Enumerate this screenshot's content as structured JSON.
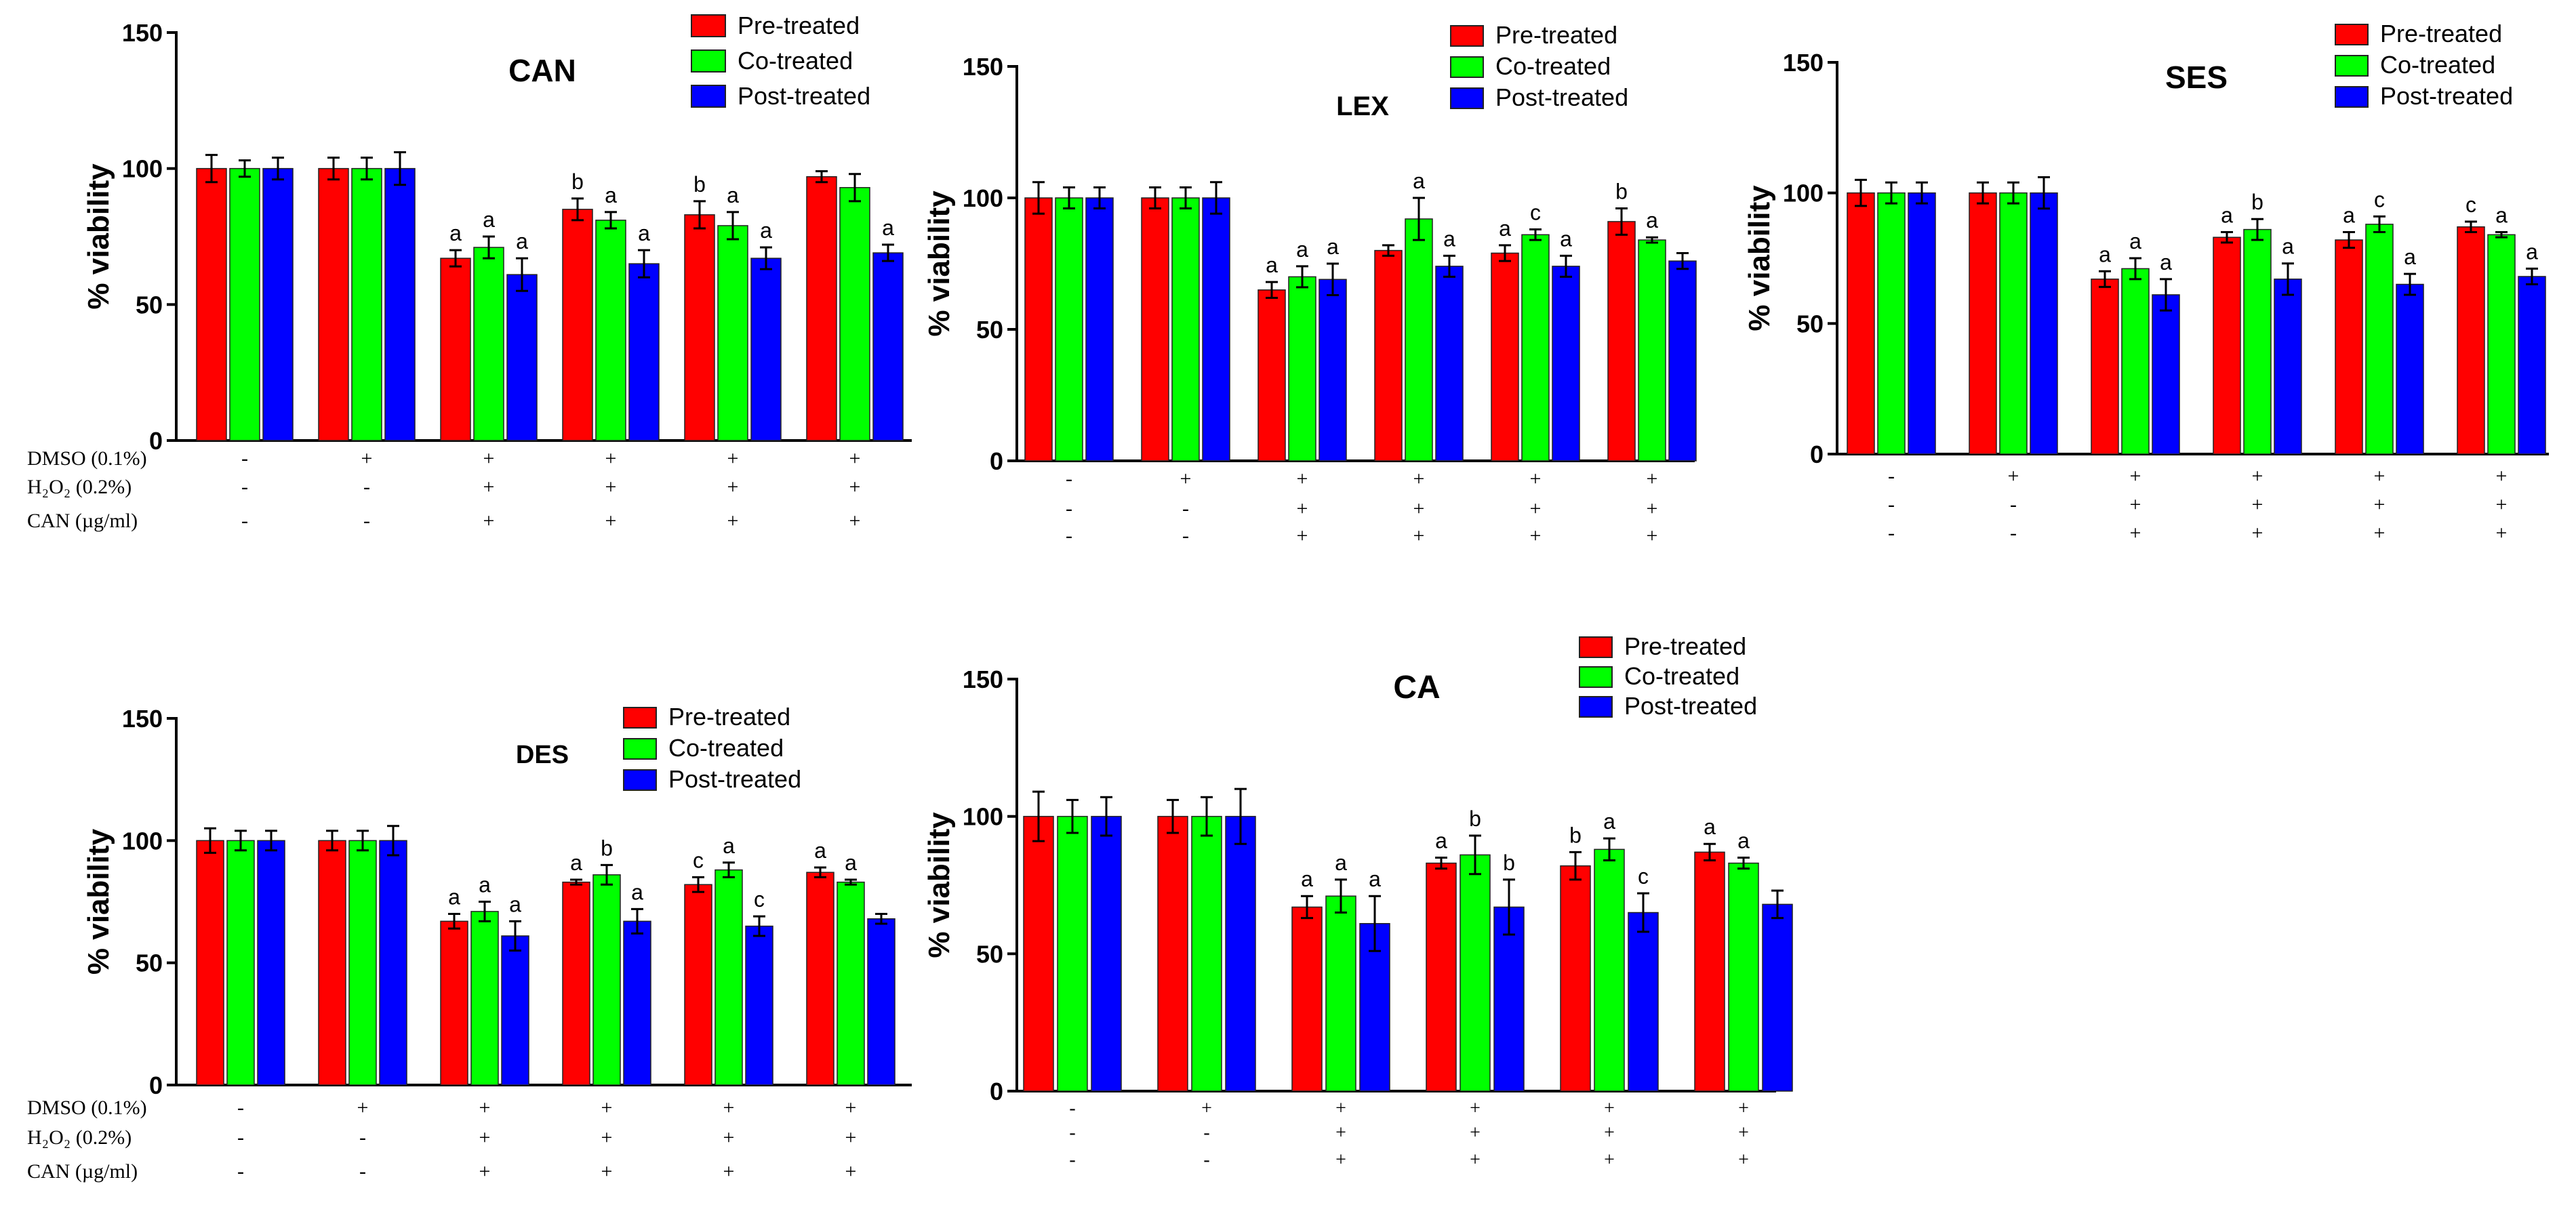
{
  "legend_labels": [
    "Pre-treated",
    "Co-treated",
    "Post-treated"
  ],
  "colors": {
    "pre": "#ff0000",
    "co": "#00ff00",
    "post": "#0000ff"
  },
  "row_labels": [
    "DMSO (0.1%)",
    "H₂O₂ (0.2%)",
    "CAN  (µg/ml)"
  ],
  "treatment_signs": [
    [
      "-",
      "+",
      "+",
      "+",
      "+",
      "+"
    ],
    [
      "-",
      "-",
      "+",
      "+",
      "+",
      "+"
    ],
    [
      "-",
      "-",
      "+",
      "+",
      "+",
      "+"
    ]
  ],
  "chart_data": [
    {
      "type": "bar",
      "title": "CAN",
      "ylabel": "% viability",
      "ylim": [
        0,
        150
      ],
      "yticks": [
        0,
        50,
        100,
        150
      ],
      "series": [
        {
          "name": "Pre-treated",
          "values": [
            100,
            100,
            67,
            85,
            83,
            97
          ],
          "errors": [
            5,
            4,
            3,
            4,
            5,
            2
          ],
          "letters": [
            "",
            "",
            "a",
            "b",
            "b",
            ""
          ]
        },
        {
          "name": "Co-treated",
          "values": [
            100,
            100,
            71,
            81,
            79,
            93
          ],
          "errors": [
            3,
            4,
            4,
            3,
            5,
            5
          ],
          "letters": [
            "",
            "",
            "a",
            "a",
            "a",
            ""
          ]
        },
        {
          "name": "Post-treated",
          "values": [
            100,
            100,
            61,
            65,
            67,
            69
          ],
          "errors": [
            4,
            6,
            6,
            5,
            4,
            3
          ],
          "letters": [
            "",
            "",
            "a",
            "a",
            "a",
            "a"
          ]
        }
      ]
    },
    {
      "type": "bar",
      "title": "LEX",
      "ylabel": "% viability",
      "ylim": [
        0,
        150
      ],
      "yticks": [
        0,
        50,
        100,
        150
      ],
      "series": [
        {
          "name": "Pre-treated",
          "values": [
            100,
            100,
            65,
            80,
            79,
            91
          ],
          "errors": [
            6,
            4,
            3,
            2,
            3,
            5
          ],
          "letters": [
            "",
            "",
            "a",
            "",
            "a",
            "b"
          ]
        },
        {
          "name": "Co-treated",
          "values": [
            100,
            100,
            70,
            92,
            86,
            84
          ],
          "errors": [
            4,
            4,
            4,
            8,
            2,
            1
          ],
          "letters": [
            "",
            "",
            "a",
            "a",
            "c",
            "a"
          ]
        },
        {
          "name": "Post-treated",
          "values": [
            100,
            100,
            69,
            74,
            74,
            76
          ],
          "errors": [
            4,
            6,
            6,
            4,
            4,
            3
          ],
          "letters": [
            "",
            "",
            "a",
            "a",
            "a",
            ""
          ]
        }
      ]
    },
    {
      "type": "bar",
      "title": "SES",
      "ylabel": "% viability",
      "ylim": [
        0,
        150
      ],
      "yticks": [
        0,
        50,
        100,
        150
      ],
      "series": [
        {
          "name": "Pre-treated",
          "values": [
            100,
            100,
            67,
            83,
            82,
            87
          ],
          "errors": [
            5,
            4,
            3,
            2,
            3,
            2
          ],
          "letters": [
            "",
            "",
            "a",
            "a",
            "a",
            "c"
          ]
        },
        {
          "name": "Co-treated",
          "values": [
            100,
            100,
            71,
            86,
            88,
            84
          ],
          "errors": [
            4,
            4,
            4,
            4,
            3,
            1
          ],
          "letters": [
            "",
            "",
            "a",
            "b",
            "c",
            "a"
          ]
        },
        {
          "name": "Post-treated",
          "values": [
            100,
            100,
            61,
            67,
            65,
            68
          ],
          "errors": [
            4,
            6,
            6,
            6,
            4,
            3
          ],
          "letters": [
            "",
            "",
            "a",
            "a",
            "a",
            "a"
          ]
        }
      ]
    },
    {
      "type": "bar",
      "title": "DES",
      "ylabel": "% viability",
      "ylim": [
        0,
        150
      ],
      "yticks": [
        0,
        50,
        100,
        150
      ],
      "series": [
        {
          "name": "Pre-treated",
          "values": [
            100,
            100,
            67,
            83,
            82,
            87
          ],
          "errors": [
            5,
            4,
            3,
            1,
            3,
            2
          ],
          "letters": [
            "",
            "",
            "a",
            "a",
            "c",
            "a"
          ]
        },
        {
          "name": "Co-treated",
          "values": [
            100,
            100,
            71,
            86,
            88,
            83
          ],
          "errors": [
            4,
            4,
            4,
            4,
            3,
            1
          ],
          "letters": [
            "",
            "",
            "a",
            "b",
            "a",
            "a"
          ]
        },
        {
          "name": "Post-treated",
          "values": [
            100,
            100,
            61,
            67,
            65,
            68
          ],
          "errors": [
            4,
            6,
            6,
            5,
            4,
            2
          ],
          "letters": [
            "",
            "",
            "a",
            "a",
            "c",
            ""
          ]
        }
      ]
    },
    {
      "type": "bar",
      "title": "CA",
      "ylabel": "% viability",
      "ylim": [
        0,
        150
      ],
      "yticks": [
        0,
        50,
        100,
        150
      ],
      "series": [
        {
          "name": "Pre-treated",
          "values": [
            100,
            100,
            67,
            83,
            82,
            87
          ],
          "errors": [
            9,
            6,
            4,
            2,
            5,
            3
          ],
          "letters": [
            "",
            "",
            "a",
            "a",
            "b",
            "a"
          ]
        },
        {
          "name": "Co-treated",
          "values": [
            100,
            100,
            71,
            86,
            88,
            83
          ],
          "errors": [
            6,
            7,
            6,
            7,
            4,
            2
          ],
          "letters": [
            "",
            "",
            "a",
            "b",
            "a",
            "a"
          ]
        },
        {
          "name": "Post-treated",
          "values": [
            100,
            100,
            61,
            67,
            65,
            68
          ],
          "errors": [
            7,
            10,
            10,
            10,
            7,
            5
          ],
          "letters": [
            "",
            "",
            "a",
            "b",
            "c",
            ""
          ]
        }
      ]
    }
  ]
}
